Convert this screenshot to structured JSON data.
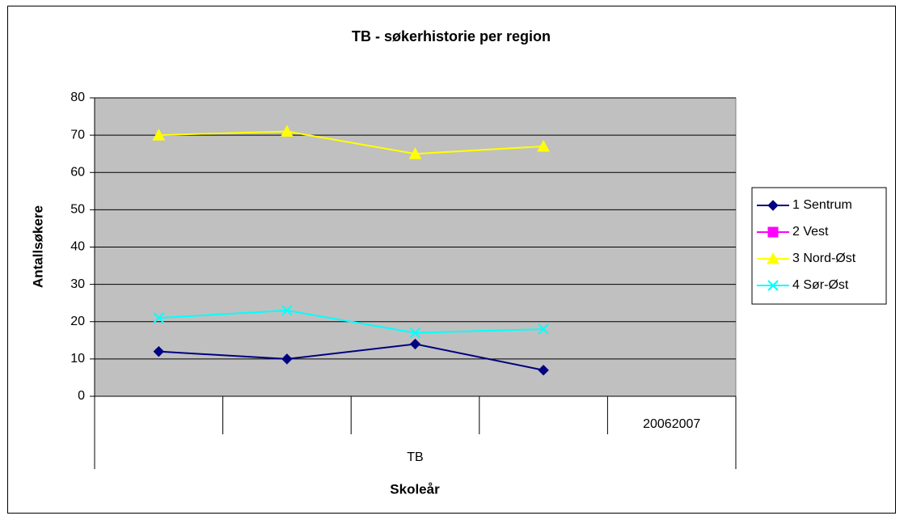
{
  "chart_data": {
    "type": "line",
    "title": "TB - søkerhistorie per region",
    "x_label": "Skoleår",
    "y_label": "Antallsøkere",
    "categories": [
      null,
      null,
      null,
      null,
      "20062007"
    ],
    "group_label": "TB",
    "series": [
      {
        "name": "1 Sentrum",
        "color": "#000080",
        "marker": "diamond",
        "values": [
          12,
          10,
          14,
          7,
          null
        ]
      },
      {
        "name": "2 Vest",
        "color": "#ff00ff",
        "marker": "square",
        "values": [
          null,
          null,
          null,
          null,
          null
        ]
      },
      {
        "name": "3 Nord-Øst",
        "color": "#ffff00",
        "marker": "triangle",
        "values": [
          70,
          71,
          65,
          67,
          null
        ]
      },
      {
        "name": "4 Sør-Øst",
        "color": "#00ffff",
        "marker": "x",
        "values": [
          21,
          23,
          17,
          18,
          null
        ]
      }
    ],
    "ylim": [
      0,
      80
    ],
    "yticks": [
      0,
      10,
      20,
      30,
      40,
      50,
      60,
      70,
      80
    ],
    "grid": true,
    "legend": "right",
    "plot_background": "#c0c0c0"
  }
}
